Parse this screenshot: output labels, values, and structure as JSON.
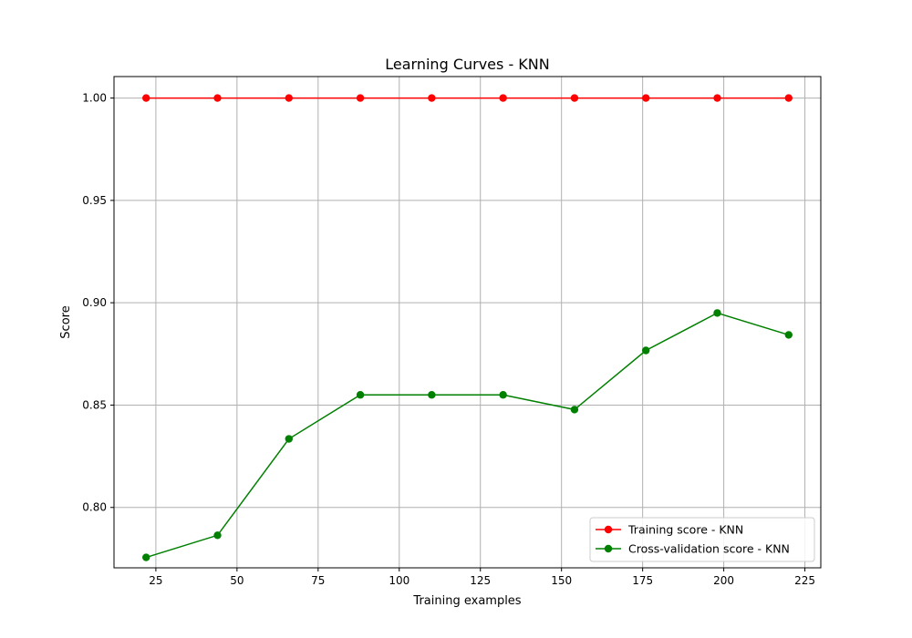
{
  "chart_data": {
    "type": "line",
    "title": "Learning Curves - KNN",
    "xlabel": "Training examples",
    "ylabel": "Score",
    "x": [
      22,
      44,
      66,
      88,
      110,
      132,
      154,
      176,
      198,
      220
    ],
    "xlim": [
      12.1,
      229.9
    ],
    "ylim": [
      0.7705,
      1.0105
    ],
    "xticks": [
      25,
      50,
      75,
      100,
      125,
      150,
      175,
      200,
      225
    ],
    "yticks": [
      0.8,
      0.85,
      0.9,
      0.95,
      1.0
    ],
    "xtick_labels": [
      "25",
      "50",
      "75",
      "100",
      "125",
      "150",
      "175",
      "200",
      "225"
    ],
    "ytick_labels": [
      "0.80",
      "0.85",
      "0.90",
      "0.95",
      "1.00"
    ],
    "grid": true,
    "legend_position": "lower-right",
    "series": [
      {
        "name": "Training score - KNN",
        "color": "#ff0000",
        "marker": "circle",
        "values": [
          1.0,
          1.0,
          1.0,
          1.0,
          1.0,
          1.0,
          1.0,
          1.0,
          1.0,
          1.0
        ]
      },
      {
        "name": "Cross-validation score - KNN",
        "color": "#008000",
        "marker": "circle",
        "values": [
          0.7756,
          0.7864,
          0.8335,
          0.855,
          0.855,
          0.855,
          0.8478,
          0.8767,
          0.895,
          0.8843
        ]
      }
    ]
  }
}
